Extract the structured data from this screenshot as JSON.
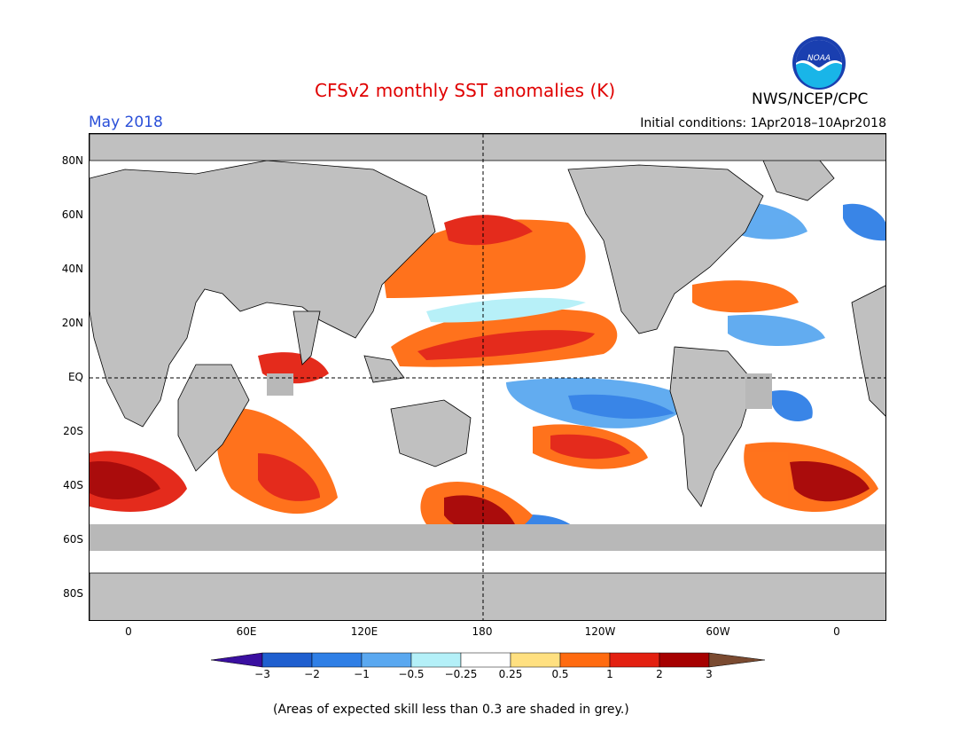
{
  "header": {
    "title": "CFSv2 monthly SST anomalies (K)",
    "month": "May 2018",
    "initial_conditions": "Initial conditions: 1Apr2018–10Apr2018",
    "agency": "NWS/NCEP/CPC",
    "logo_text": "NOAA"
  },
  "map": {
    "lat_labels": [
      "80N",
      "60N",
      "40N",
      "20N",
      "EQ",
      "20S",
      "40S",
      "60S",
      "80S"
    ],
    "lon_labels": [
      "0",
      "60E",
      "120E",
      "180",
      "120W",
      "60W",
      "0"
    ]
  },
  "colorbar": {
    "labels": [
      "−3",
      "−2",
      "−1",
      "−0.5",
      "−0.25",
      "0.25",
      "0.5",
      "1",
      "2",
      "3"
    ],
    "colors": [
      "#3a0fa0",
      "#1f5fcf",
      "#2f7fe6",
      "#5aa8f0",
      "#b4f0f8",
      "#ffffff",
      "#ffe080",
      "#ff6b10",
      "#e32010",
      "#a60000",
      "#7a4a30"
    ]
  },
  "colors": {
    "land": "#c0c0c0",
    "missing_skill": "#b8b8b8",
    "title_red": "#e00000",
    "month_blue": "#2a4fd8"
  },
  "footer": {
    "note": "(Areas of expected skill less than 0.3 are shaded in grey.)"
  }
}
